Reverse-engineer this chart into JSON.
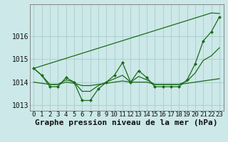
{
  "xlabel": "Graphe pression niveau de la mer (hPa)",
  "background_color": "#cce8e8",
  "grid_color": "#aacccc",
  "line_color": "#1a6b1a",
  "hours": [
    0,
    1,
    2,
    3,
    4,
    5,
    6,
    7,
    8,
    9,
    10,
    11,
    12,
    13,
    14,
    15,
    16,
    17,
    18,
    19,
    20,
    21,
    22,
    23
  ],
  "y_main": [
    1014.6,
    1014.3,
    1013.8,
    1013.8,
    1014.2,
    1014.0,
    1013.2,
    1013.2,
    1013.7,
    1014.0,
    1014.3,
    1014.85,
    1014.0,
    1014.5,
    1014.2,
    1013.8,
    1013.8,
    1013.8,
    1013.8,
    1014.1,
    1014.8,
    1015.8,
    1016.2,
    1016.85
  ],
  "y_trend": [
    1014.6,
    1014.71,
    1014.82,
    1014.93,
    1015.04,
    1015.15,
    1015.26,
    1015.37,
    1015.48,
    1015.59,
    1015.7,
    1015.81,
    1015.92,
    1016.03,
    1016.14,
    1016.25,
    1016.36,
    1016.47,
    1016.58,
    1016.69,
    1016.8,
    1016.91,
    1017.02,
    1017.0
  ],
  "y_flat": [
    1014.0,
    1013.95,
    1013.9,
    1013.9,
    1014.0,
    1013.95,
    1013.85,
    1013.85,
    1013.9,
    1013.95,
    1014.0,
    1014.05,
    1014.0,
    1014.0,
    1014.0,
    1013.9,
    1013.9,
    1013.9,
    1013.9,
    1013.95,
    1014.0,
    1014.05,
    1014.1,
    1014.15
  ],
  "y_mid": [
    1014.6,
    1014.3,
    1013.9,
    1013.9,
    1014.1,
    1014.0,
    1013.6,
    1013.6,
    1013.85,
    1014.0,
    1014.15,
    1014.3,
    1014.0,
    1014.25,
    1014.1,
    1013.9,
    1013.9,
    1013.9,
    1013.9,
    1014.05,
    1014.4,
    1014.95,
    1015.15,
    1015.5
  ],
  "ylim_min": 1012.75,
  "ylim_max": 1017.4,
  "yticks": [
    1013,
    1014,
    1015,
    1016
  ],
  "tick_fontsize": 6.5,
  "xlabel_fontsize": 8.0
}
